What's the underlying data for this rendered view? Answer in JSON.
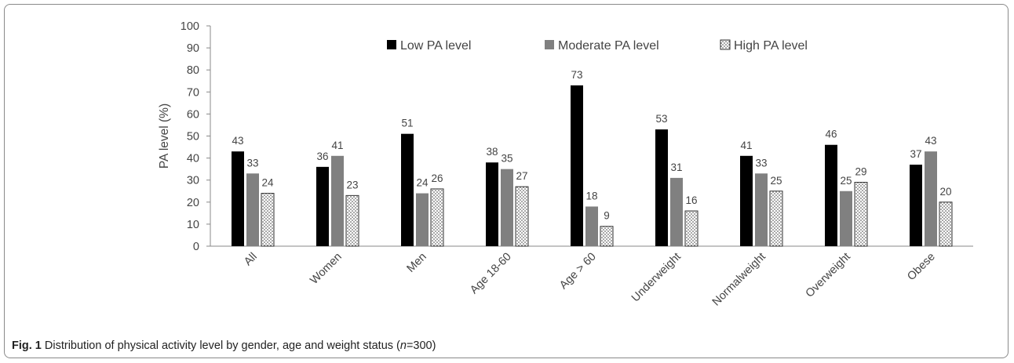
{
  "chart_data": {
    "type": "bar",
    "ylabel": "PA level (%)",
    "ylim": [
      0,
      100
    ],
    "yticks": [
      0,
      10,
      20,
      30,
      40,
      50,
      60,
      70,
      80,
      90,
      100
    ],
    "grid": false,
    "legend_position": "top",
    "categories": [
      "All",
      "Women",
      "Men",
      "Age 18-60",
      "Age > 60",
      "Underweight",
      "Normalweight",
      "Overweight",
      "Obese"
    ],
    "series": [
      {
        "name": "Low PA level",
        "values": [
          43,
          36,
          51,
          38,
          73,
          53,
          41,
          46,
          37
        ],
        "color": "#000000",
        "pattern": "solid"
      },
      {
        "name": "Moderate PA level",
        "values": [
          33,
          41,
          24,
          35,
          18,
          31,
          33,
          25,
          43
        ],
        "color": "#808080",
        "pattern": "solid"
      },
      {
        "name": "High PA level",
        "values": [
          24,
          23,
          26,
          27,
          9,
          16,
          25,
          29,
          20
        ],
        "color": "#ffffff",
        "pattern": "dots"
      }
    ]
  },
  "caption": {
    "label": "Fig. 1",
    "text_before": " Distribution of physical activity level by gender, age and weight status (",
    "n_symbol": "n",
    "text_after": "=300)"
  }
}
